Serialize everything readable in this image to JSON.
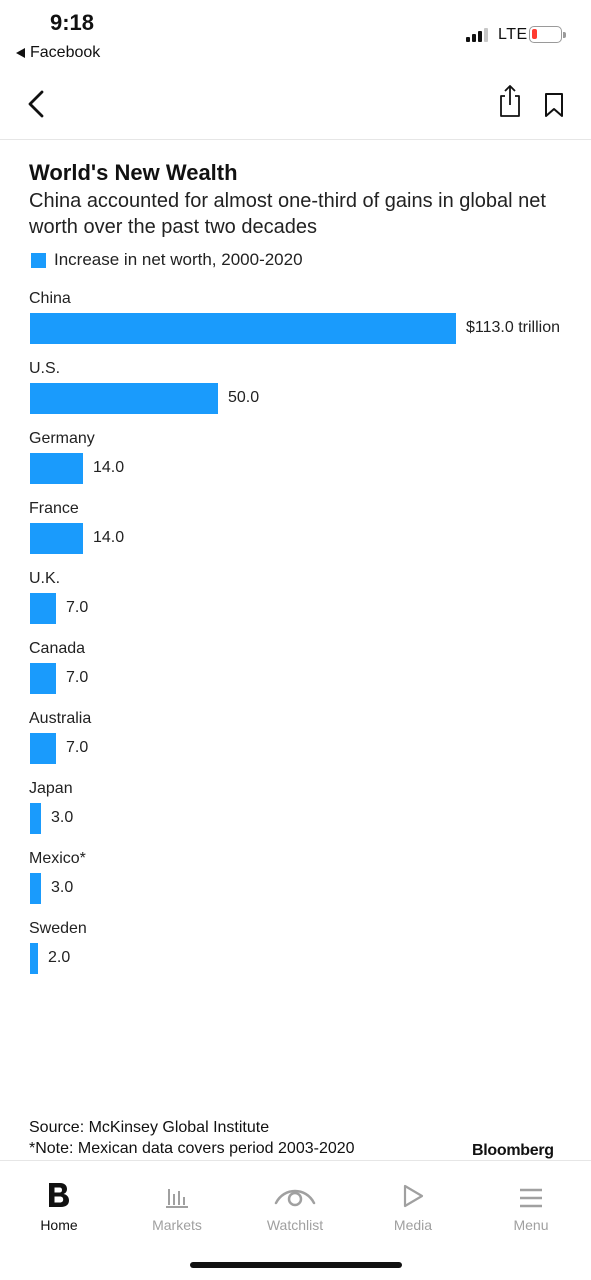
{
  "status_bar": {
    "time": "9:18",
    "back_app": "Facebook",
    "network": "LTE",
    "battery_color": "#ff3b30"
  },
  "nav": {
    "back_icon": "chevron-left-icon",
    "share_icon": "share-icon",
    "bookmark_icon": "bookmark-icon"
  },
  "chart": {
    "title": "World's New Wealth",
    "subtitle": "China accounted for almost one-third of gains in global net worth over the past two decades",
    "legend": "Increase in net worth, 2000-2020",
    "bar_color": "#1a9bfc",
    "source": "Source: McKinsey Global Institute",
    "note": "*Note: Mexican data covers period 2003-2020",
    "brand": "Bloomberg"
  },
  "chart_data": {
    "type": "bar",
    "orientation": "horizontal",
    "title": "World's New Wealth",
    "subtitle": "China accounted for almost one-third of gains in global net worth over the past two decades",
    "categories": [
      "China",
      "U.S.",
      "Germany",
      "France",
      "U.K.",
      "Canada",
      "Australia",
      "Japan",
      "Mexico*",
      "Sweden"
    ],
    "series": [
      {
        "name": "Increase in net worth, 2000-2020",
        "values": [
          113.0,
          50.0,
          14.0,
          14.0,
          7.0,
          7.0,
          7.0,
          3.0,
          3.0,
          2.0
        ],
        "labels": [
          "$113.0 trillion",
          "50.0",
          "14.0",
          "14.0",
          "7.0",
          "7.0",
          "7.0",
          "3.0",
          "3.0",
          "2.0"
        ]
      }
    ],
    "xlim": [
      0,
      113.0
    ],
    "grid": false,
    "legend_position": "top-left"
  },
  "tabbar": {
    "tabs": [
      {
        "label": "Home",
        "icon": "bloomberg-b-icon",
        "active": true
      },
      {
        "label": "Markets",
        "icon": "bar-chart-icon",
        "active": false
      },
      {
        "label": "Watchlist",
        "icon": "eye-icon",
        "active": false
      },
      {
        "label": "Media",
        "icon": "play-icon",
        "active": false
      },
      {
        "label": "Menu",
        "icon": "hamburger-menu-icon",
        "active": false
      }
    ]
  }
}
